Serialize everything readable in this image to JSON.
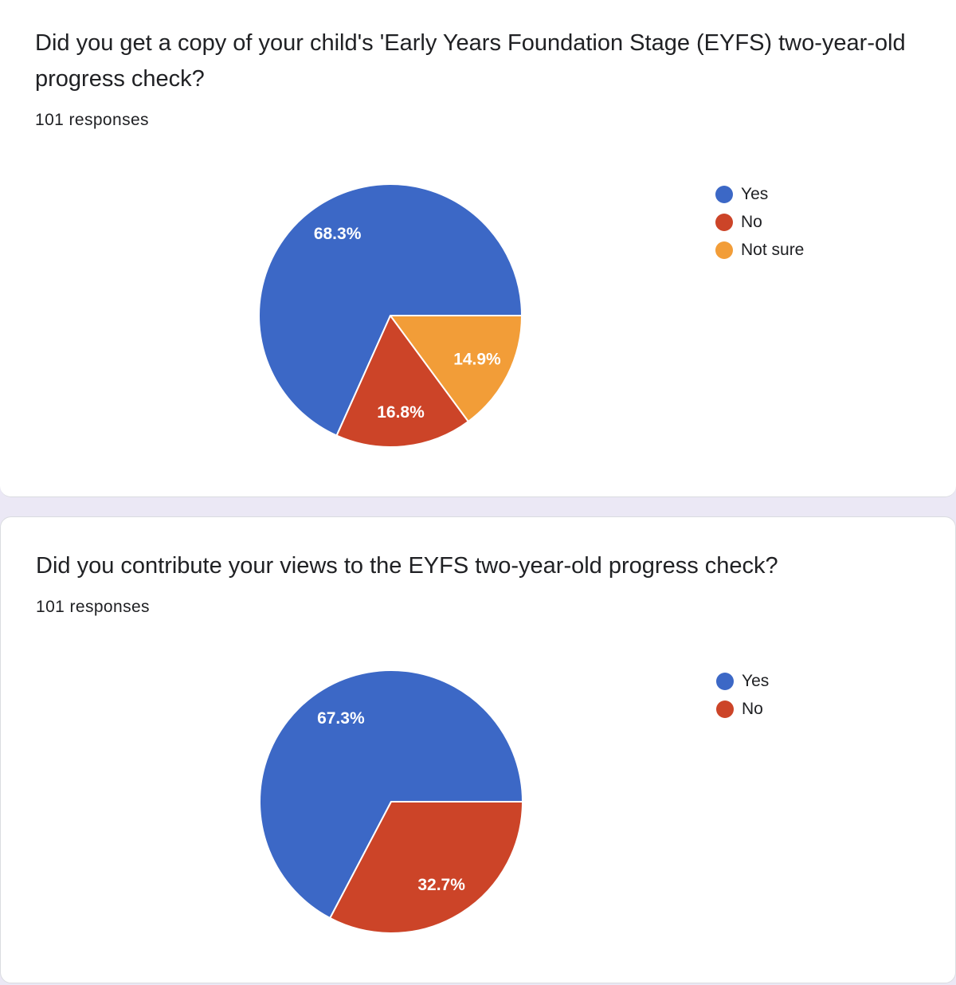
{
  "cards": [
    {
      "title": "Did you get a copy of your child's 'Early Years Foundation Stage (EYFS) two-year-old progress check?",
      "responses": "101 responses"
    },
    {
      "title": "Did you contribute your views to the EYFS two-year-old progress check?",
      "responses": "101 responses"
    }
  ],
  "chart_data": [
    {
      "type": "pie",
      "title": "Did you get a copy of your child's 'Early Years Foundation Stage (EYFS) two-year-old progress check?",
      "total_responses": 101,
      "categories": [
        "Yes",
        "No",
        "Not sure"
      ],
      "values": [
        68.3,
        16.8,
        14.9
      ],
      "labels": [
        "68.3%",
        "16.8%",
        "14.9%"
      ],
      "colors": [
        "#3c68c6",
        "#cc4428",
        "#f29d38"
      ],
      "legend_position": "right"
    },
    {
      "type": "pie",
      "title": "Did you contribute your views to the EYFS two-year-old progress check?",
      "total_responses": 101,
      "categories": [
        "Yes",
        "No"
      ],
      "values": [
        67.3,
        32.7
      ],
      "labels": [
        "67.3%",
        "32.7%"
      ],
      "colors": [
        "#3c68c6",
        "#cc4428"
      ],
      "legend_position": "right"
    }
  ]
}
